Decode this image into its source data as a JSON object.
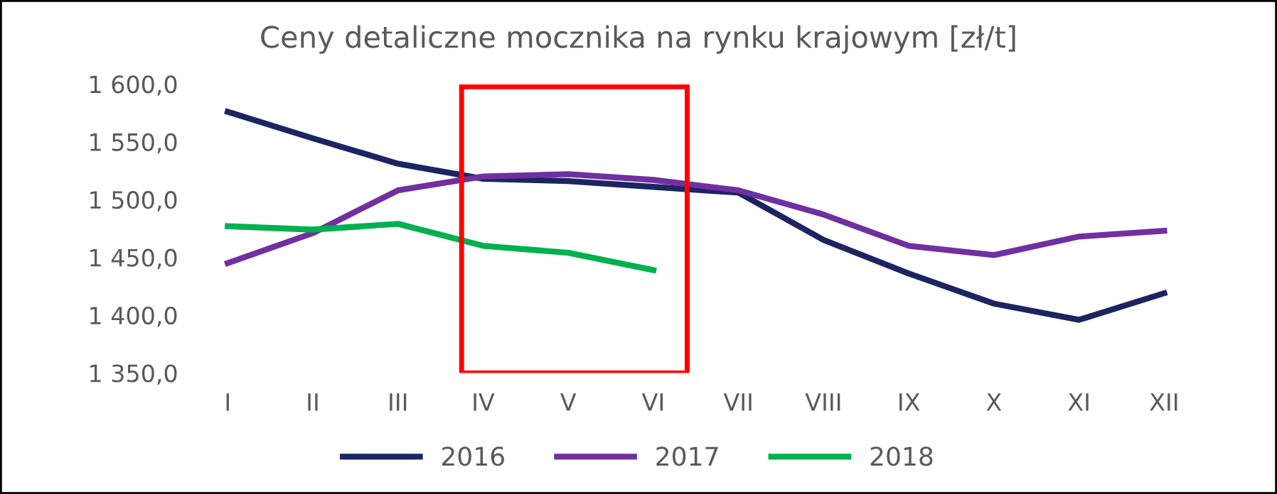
{
  "chart_data": {
    "type": "line",
    "title": "Ceny detaliczne mocznika na rynku krajowym [zł/t]",
    "categories": [
      "I",
      "II",
      "III",
      "IV",
      "V",
      "VI",
      "VII",
      "VIII",
      "IX",
      "X",
      "XI",
      "XII"
    ],
    "series": [
      {
        "name": "2016",
        "color": "#1c2461",
        "values": [
          1576,
          1553,
          1531,
          1518,
          1516,
          1511,
          1506,
          1465,
          1436,
          1410,
          1396,
          1419
        ]
      },
      {
        "name": "2017",
        "color": "#7030a0",
        "values": [
          1445,
          1471,
          1508,
          1520,
          1522,
          1517,
          1508,
          1487,
          1460,
          1452,
          1468,
          1473
        ]
      },
      {
        "name": "2018",
        "color": "#00b050",
        "values": [
          1477,
          1474,
          1479,
          1460,
          1454,
          1439,
          null,
          null,
          null,
          null,
          null,
          null
        ]
      }
    ],
    "ylim": [
      1350,
      1600
    ],
    "yticks": [
      {
        "value": 1350,
        "label": "1 350,0"
      },
      {
        "value": 1400,
        "label": "1 400,0"
      },
      {
        "value": 1450,
        "label": "1 450,0"
      },
      {
        "value": 1500,
        "label": "1 500,0"
      },
      {
        "value": 1550,
        "label": "1 550,0"
      },
      {
        "value": 1600,
        "label": "1 600,0"
      }
    ],
    "grid": false,
    "legend": "bottom",
    "marker": "none",
    "line_style": "solid"
  }
}
